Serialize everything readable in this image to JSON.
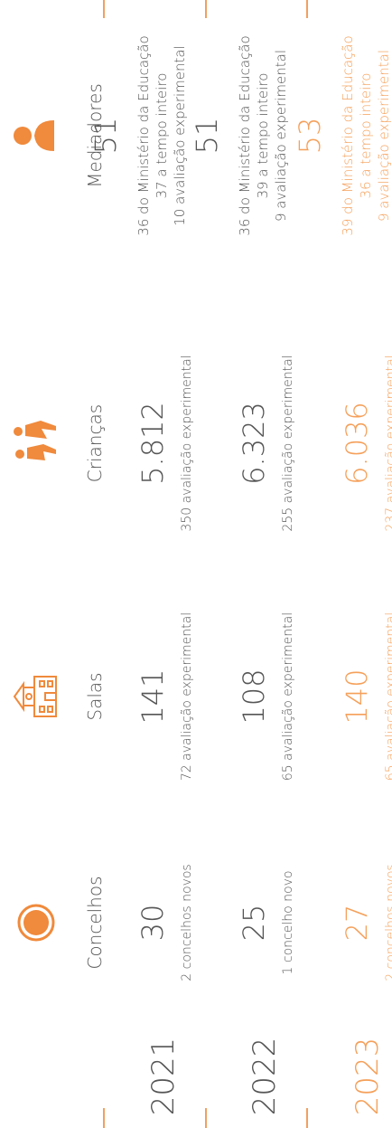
{
  "table": {
    "columns": [
      "Concelhos",
      "Salas",
      "Crianças",
      "Mediadores"
    ],
    "rows": [
      {
        "year": "2021",
        "cells": [
          {
            "value": "30",
            "notes": [
              "2 concelhos novos"
            ]
          },
          {
            "value": "141",
            "notes": [
              "72 avaliação experimental"
            ]
          },
          {
            "value": "5.812",
            "notes": [
              "350 avaliação experimental"
            ]
          },
          {
            "value": "51",
            "notes": [
              "36 do Ministério da Educação",
              "37 a tempo inteiro",
              "10 avaliação experimental"
            ]
          }
        ]
      },
      {
        "year": "2022",
        "cells": [
          {
            "value": "25",
            "notes": [
              "1 concelho novo"
            ]
          },
          {
            "value": "108",
            "notes": [
              "65 avaliação experimental"
            ]
          },
          {
            "value": "6.323",
            "notes": [
              "255 avaliação experimental"
            ]
          },
          {
            "value": "51",
            "notes": [
              "36 do Ministério da Educação",
              "39 a tempo inteiro",
              "9 avaliação experimental"
            ]
          }
        ]
      },
      {
        "year": "2023",
        "cells": [
          {
            "value": "27",
            "notes": [
              "2 concelhos novos"
            ]
          },
          {
            "value": "140",
            "notes": [
              "65 avaliação experimental"
            ]
          },
          {
            "value": "6.036",
            "notes": [
              "237 avaliação experimental"
            ]
          },
          {
            "value": "53",
            "notes": [
              "39 do Ministério da Educação",
              "36 a tempo inteiro",
              "9 avaliação experimental"
            ]
          }
        ]
      }
    ]
  }
}
